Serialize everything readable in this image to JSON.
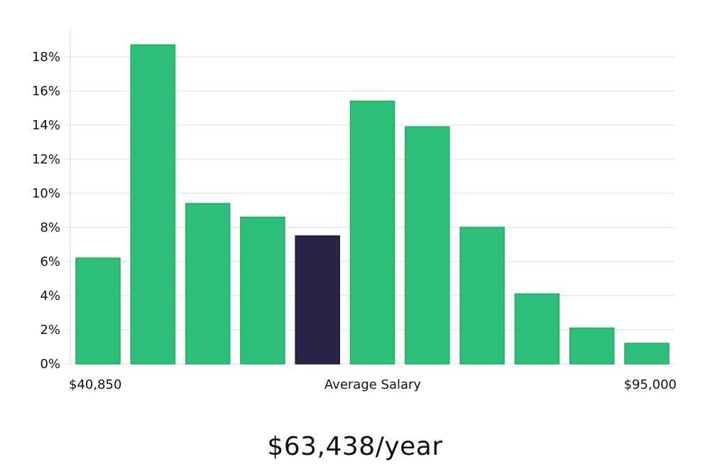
{
  "chart_data": {
    "type": "bar",
    "categories": [
      "1",
      "2",
      "3",
      "4",
      "5",
      "6",
      "7",
      "8",
      "9",
      "10",
      "11"
    ],
    "values": [
      6.2,
      18.7,
      9.4,
      8.6,
      7.5,
      15.4,
      13.9,
      8.0,
      4.1,
      2.1,
      1.2
    ],
    "highlight_index": 4,
    "ylim": [
      0,
      18
    ],
    "yticks": [
      0,
      2,
      4,
      6,
      8,
      10,
      12,
      14,
      16,
      18
    ],
    "ytick_suffix": "%",
    "ytick_labels": [
      "0%",
      "2%",
      "4%",
      "6%",
      "8%",
      "10%",
      "12%",
      "14%",
      "16%",
      "18%"
    ],
    "grid": true,
    "colors": {
      "bar": "#2bbf78",
      "highlight": "#282445",
      "grid": "#dcdcdc"
    },
    "x_labels": {
      "min": "$40,850",
      "center": "Average Salary",
      "max": "$95,000"
    }
  },
  "caption": "$63,438/year"
}
